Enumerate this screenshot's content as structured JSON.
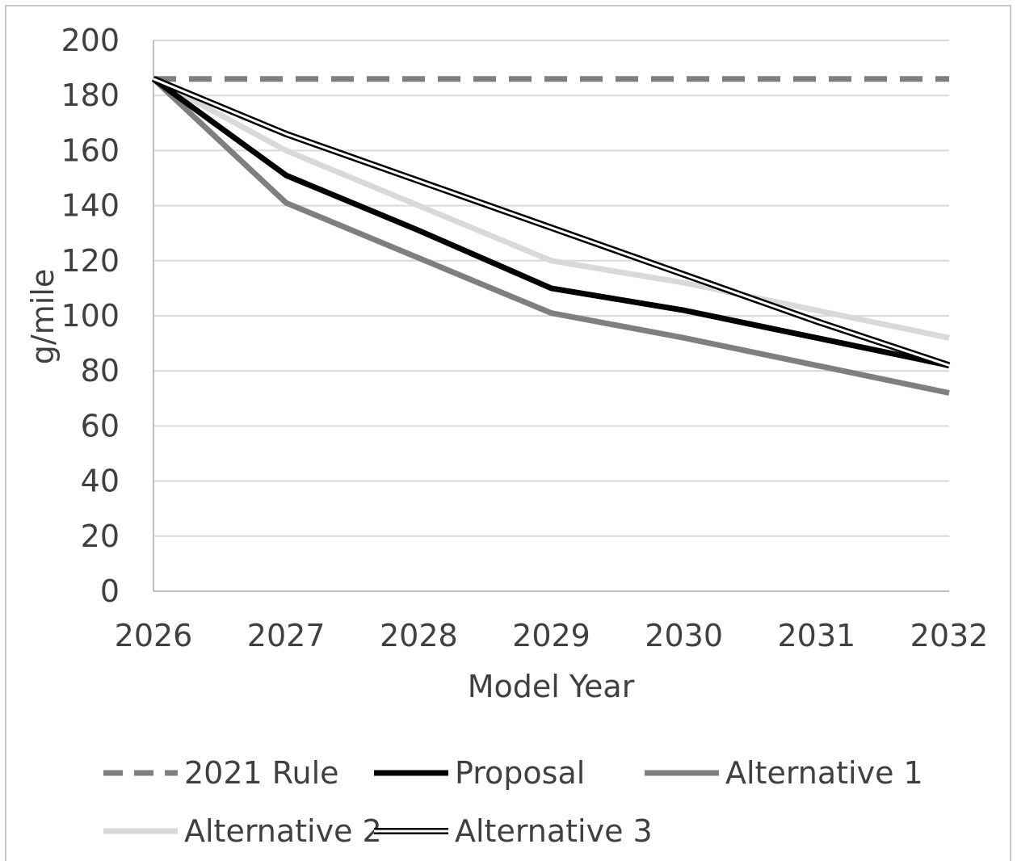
{
  "chart_data": {
    "type": "line",
    "title": "",
    "xlabel": "Model Year",
    "ylabel": "g/mile",
    "x": [
      2026,
      2027,
      2028,
      2029,
      2030,
      2031,
      2032
    ],
    "ylim": [
      0,
      200
    ],
    "yticks": [
      0,
      20,
      40,
      60,
      80,
      100,
      120,
      140,
      160,
      180,
      200
    ],
    "grid": "horizontal",
    "legend_position": "bottom",
    "series": [
      {
        "name": "2021 Rule",
        "values": [
          186,
          186,
          186,
          186,
          186,
          186,
          186
        ],
        "color": "#7f7f7f",
        "style": "dashed"
      },
      {
        "name": "Proposal",
        "values": [
          186,
          151,
          131,
          110,
          102,
          92,
          82
        ],
        "color": "#000000",
        "style": "solid"
      },
      {
        "name": "Alternative 1",
        "values": [
          186,
          141,
          121,
          101,
          92,
          82,
          72
        ],
        "color": "#7f7f7f",
        "style": "solid"
      },
      {
        "name": "Alternative 2",
        "values": [
          186,
          160,
          140,
          120,
          112,
          102,
          92
        ],
        "color": "#d9d9d9",
        "style": "solid"
      },
      {
        "name": "Alternative 3",
        "values": [
          186,
          166,
          149,
          132,
          115,
          98,
          82
        ],
        "color": "#000000",
        "style": "double"
      }
    ]
  }
}
